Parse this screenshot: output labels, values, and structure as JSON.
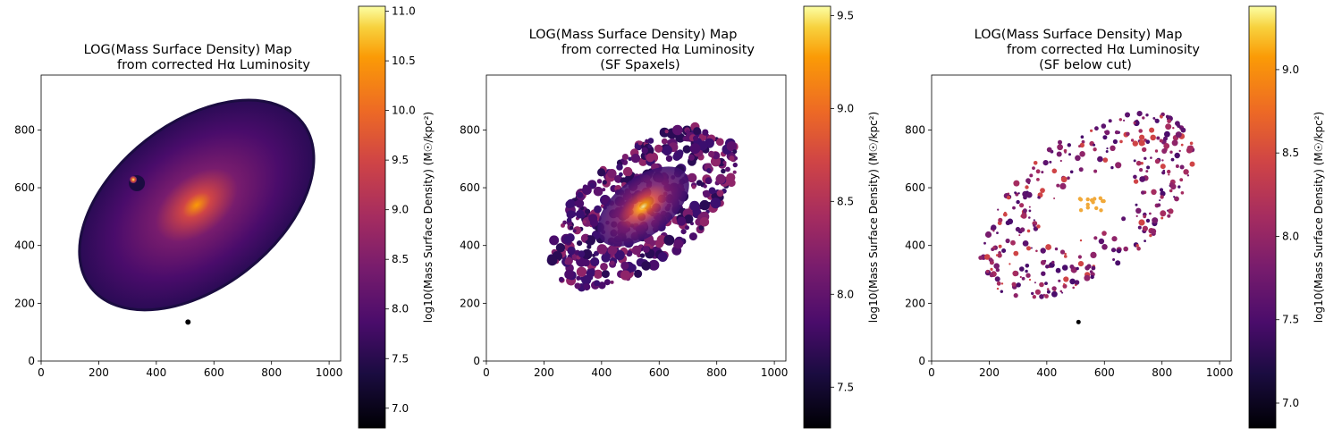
{
  "colormap": "inferno",
  "chart_data": [
    {
      "type": "heatmap",
      "title_lines": [
        "LOG(Mass Surface Density) Map",
        "from corrected Hα Luminosity"
      ],
      "xlabel": "",
      "ylabel": "",
      "xlim": [
        0,
        1040
      ],
      "ylim": [
        0,
        990
      ],
      "x_ticks": [
        "0",
        "200",
        "400",
        "600",
        "800",
        "1000"
      ],
      "y_ticks": [
        "0",
        "200",
        "400",
        "600",
        "800"
      ],
      "colorbar": {
        "label": "log10(Mass Surface Density) (M☉/kpc²)",
        "range": [
          6.8,
          11.05
        ],
        "ticks": [
          "7.0",
          "7.5",
          "8.0",
          "8.5",
          "9.0",
          "9.5",
          "10.0",
          "10.5",
          "11.0"
        ]
      },
      "galaxy": {
        "center": [
          540,
          540
        ],
        "peak_value": 10.3,
        "bright_knot": [
          320,
          628
        ],
        "bright_knot_value": 10.8,
        "background_value": 7.4
      }
    },
    {
      "type": "heatmap",
      "title_lines": [
        "LOG(Mass Surface Density) Map",
        "from corrected Hα Luminosity",
        "(SF Spaxels)"
      ],
      "xlabel": "",
      "ylabel": "",
      "xlim": [
        0,
        1040
      ],
      "ylim": [
        0,
        990
      ],
      "x_ticks": [
        "0",
        "200",
        "400",
        "600",
        "800",
        "1000"
      ],
      "y_ticks": [
        "0",
        "200",
        "400",
        "600",
        "800"
      ],
      "colorbar": {
        "label": "log10(Mass Surface Density) (M☉/kpc²)",
        "range": [
          7.28,
          9.55
        ],
        "ticks": [
          "7.5",
          "8.0",
          "8.5",
          "9.0",
          "9.5"
        ]
      },
      "galaxy": {
        "center": [
          545,
          535
        ],
        "peak_value": 9.5,
        "background_value": 7.7
      }
    },
    {
      "type": "heatmap",
      "title_lines": [
        "LOG(Mass Surface Density) Map",
        "from corrected Hα Luminosity",
        "(SF below cut)"
      ],
      "xlabel": "",
      "ylabel": "",
      "xlim": [
        0,
        1040
      ],
      "ylim": [
        0,
        990
      ],
      "x_ticks": [
        "0",
        "200",
        "400",
        "600",
        "800",
        "1000"
      ],
      "y_ticks": [
        "0",
        "200",
        "400",
        "600",
        "800"
      ],
      "colorbar": {
        "label": "log10(Mass Surface Density) (M☉/kpc²)",
        "range": [
          6.85,
          9.38
        ],
        "ticks": [
          "7.0",
          "7.5",
          "8.0",
          "8.5",
          "9.0"
        ]
      },
      "galaxy": {
        "center": [
          540,
          540
        ],
        "peak_value": 9.0,
        "background_value": 7.6
      }
    }
  ]
}
